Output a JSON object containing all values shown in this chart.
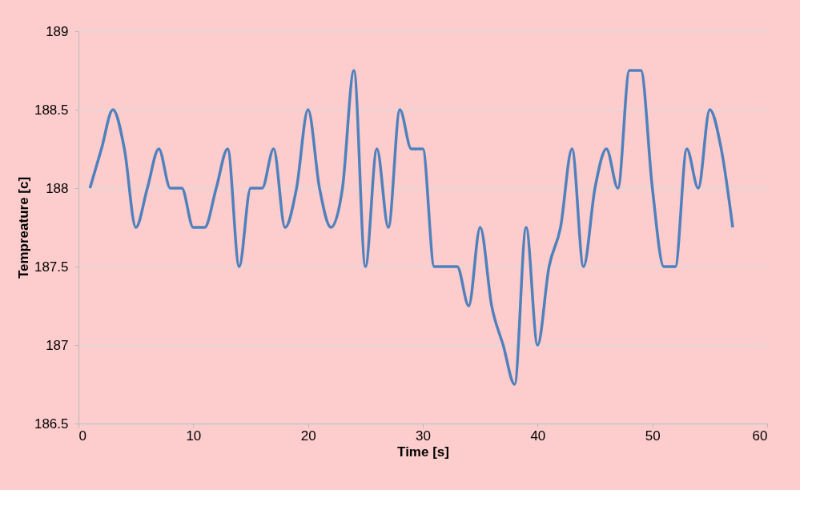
{
  "chart_data": {
    "type": "line",
    "xlabel": "Time [s]",
    "ylabel": "Tempreature [c]",
    "x": [
      1,
      2,
      3,
      4,
      5,
      6,
      7,
      8,
      9,
      10,
      11,
      12,
      13,
      14,
      15,
      16,
      17,
      18,
      19,
      20,
      21,
      22,
      23,
      24,
      25,
      26,
      27,
      28,
      29,
      30,
      31,
      32,
      33,
      34,
      35,
      36,
      37,
      38,
      39,
      40,
      41,
      42,
      43,
      44,
      45,
      46,
      47,
      48,
      49,
      50,
      51,
      52,
      53,
      54,
      55,
      56,
      57
    ],
    "series": [
      {
        "color": "#4f81bd",
        "values": [
          188,
          188.25,
          188.5,
          188.25,
          187.75,
          188,
          188.25,
          188,
          188,
          187.75,
          187.75,
          188,
          188.25,
          187.5,
          188,
          188,
          188.25,
          187.75,
          188,
          188.5,
          188,
          187.75,
          188,
          188.75,
          187.5,
          188.25,
          187.75,
          188.5,
          188.25,
          188.25,
          187.5,
          187.5,
          187.5,
          187.25,
          187.75,
          187.25,
          187,
          186.75,
          187.75,
          187,
          187.5,
          187.75,
          188.25,
          187.5,
          188,
          188.25,
          188,
          188.75,
          188.75,
          188,
          187.5,
          187.5,
          188.25,
          188,
          188.5,
          188.25,
          187.75
        ]
      }
    ],
    "xlim": [
      0,
      60
    ],
    "xticks": [
      0,
      10,
      20,
      30,
      40,
      50,
      60
    ],
    "ylim": [
      186.5,
      189
    ],
    "yticks": [
      186.5,
      187,
      187.5,
      188,
      188.5,
      189
    ],
    "grid": "y",
    "marker": "none",
    "line_style": "solid"
  }
}
